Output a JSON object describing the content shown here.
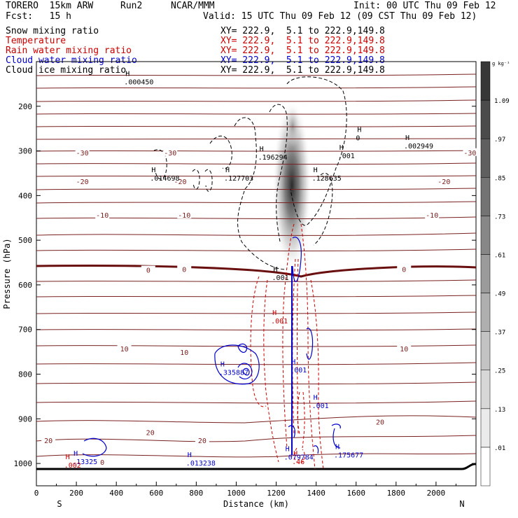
{
  "header": {
    "model": "TORERO  15km ARW",
    "run": "Run2",
    "org": "NCAR/MMM",
    "init": "Init: 00 UTC Thu 09 Feb 12",
    "fcst": "Fcst:   15 h",
    "valid": "Valid: 15 UTC Thu 09 Feb 12 (09 CST Thu 09 Feb 12)"
  },
  "fields": [
    {
      "name": "Snow mixing ratio",
      "xy": "XY= 222.9,  5.1 to 222.9,149.8",
      "color": "#000000"
    },
    {
      "name": "Temperature",
      "xy": "XY= 222.9,  5.1 to 222.9,149.8",
      "color": "#cc0000"
    },
    {
      "name": "Rain water mixing ratio",
      "xy": "XY= 222.9,  5.1 to 222.9,149.8",
      "color": "#cc0000"
    },
    {
      "name": "Cloud water mixing ratio",
      "xy": "XY= 222.9,  5.1 to 222.9,149.8",
      "color": "#0000cc"
    },
    {
      "name": "Cloud ice mixing ratio",
      "xy": "XY= 222.9,  5.1 to 222.9,149.8",
      "color": "#000000"
    }
  ],
  "chart_data": {
    "type": "contour",
    "xlabel": "Distance (km)",
    "ylabel": "Pressure (hPa)",
    "xlim": [
      0,
      2200
    ],
    "ylim": [
      1050,
      100
    ],
    "x_ticks": [
      0,
      200,
      400,
      600,
      800,
      1000,
      1200,
      1400,
      1600,
      1800,
      2000
    ],
    "y_ticks": [
      200,
      300,
      400,
      500,
      600,
      700,
      800,
      900,
      1000
    ],
    "left_end_label": "S",
    "right_end_label": "N",
    "colorbar": {
      "unit": "g kg⁻¹",
      "levels": [
        ".01",
        ".13",
        ".25",
        ".37",
        ".49",
        ".61",
        ".73",
        ".85",
        ".97",
        "1.09"
      ]
    },
    "temperature_labels": [
      {
        "value": "-30",
        "x": 230,
        "p": 305
      },
      {
        "value": "-30",
        "x": 670,
        "p": 305
      },
      {
        "value": "-30",
        "x": 2170,
        "p": 305
      },
      {
        "value": "-20",
        "x": 230,
        "p": 370
      },
      {
        "value": "-20",
        "x": 720,
        "p": 370
      },
      {
        "value": "-20",
        "x": 2040,
        "p": 370
      },
      {
        "value": "-10",
        "x": 330,
        "p": 445
      },
      {
        "value": "-10",
        "x": 740,
        "p": 445
      },
      {
        "value": "-10",
        "x": 1980,
        "p": 445
      },
      {
        "value": "0",
        "x": 560,
        "p": 568
      },
      {
        "value": "0",
        "x": 740,
        "p": 566
      },
      {
        "value": "0",
        "x": 1840,
        "p": 566
      },
      {
        "value": "10",
        "x": 440,
        "p": 744
      },
      {
        "value": "10",
        "x": 740,
        "p": 752
      },
      {
        "value": "10",
        "x": 1840,
        "p": 744
      },
      {
        "value": "20",
        "x": 570,
        "p": 932
      },
      {
        "value": "20",
        "x": 830,
        "p": 950
      },
      {
        "value": "20",
        "x": 1720,
        "p": 908
      },
      {
        "value": "20",
        "x": 60,
        "p": 950
      },
      {
        "value": "0",
        "x": 330,
        "p": 998
      }
    ],
    "max_labels": [
      {
        "value": ".000450",
        "x": 460,
        "p": 145,
        "color": "#000000"
      },
      {
        "value": ".014698",
        "x": 590,
        "p": 360,
        "color": "#000000"
      },
      {
        "value": ".127703",
        "x": 960,
        "p": 360,
        "color": "#000000"
      },
      {
        "value": ".196294",
        "x": 1130,
        "p": 313,
        "color": "#000000"
      },
      {
        "value": ".128635",
        "x": 1400,
        "p": 360,
        "color": "#000000"
      },
      {
        "value": ".002949",
        "x": 1860,
        "p": 288,
        "color": "#000000"
      },
      {
        "value": ".001",
        "x": 1530,
        "p": 310,
        "color": "#000000"
      },
      {
        "value": "0",
        "x": 1620,
        "p": 270,
        "color": "#000000"
      },
      {
        "value": ".001",
        "x": 1200,
        "p": 583,
        "color": "#000000"
      },
      {
        "value": ".335887",
        "x": 935,
        "p": 795,
        "color": "#0000cc"
      },
      {
        "value": ".001",
        "x": 1195,
        "p": 680,
        "color": "#cc0000"
      },
      {
        "value": ".001",
        "x": 1290,
        "p": 790,
        "color": "#0000cc"
      },
      {
        "value": ".001",
        "x": 1400,
        "p": 870,
        "color": "#0000cc"
      },
      {
        "value": ".079784",
        "x": 1260,
        "p": 985,
        "color": "#0000cc"
      },
      {
        "value": ".175677",
        "x": 1510,
        "p": 980,
        "color": "#0000cc"
      },
      {
        "value": ".13325",
        "x": 200,
        "p": 995,
        "color": "#0000cc"
      },
      {
        "value": ".013238",
        "x": 770,
        "p": 998,
        "color": "#0000cc"
      },
      {
        "value": ".002",
        "x": 160,
        "p": 1003,
        "color": "#cc0000"
      },
      {
        "value": ".46",
        "x": 1300,
        "p": 995,
        "color": "#cc0000"
      }
    ]
  }
}
